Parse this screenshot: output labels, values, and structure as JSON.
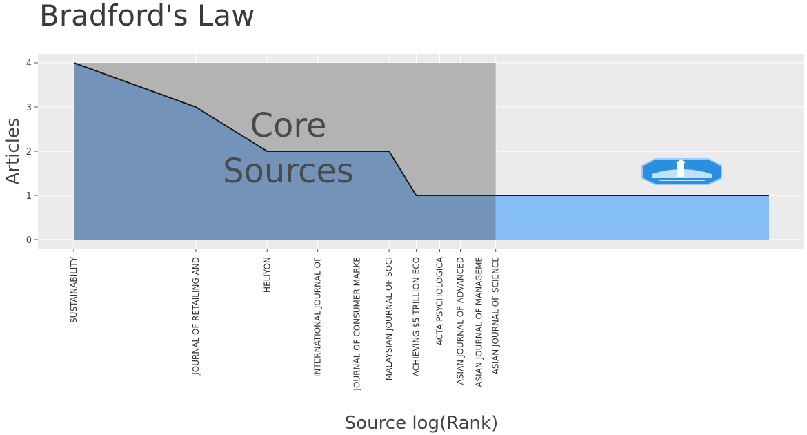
{
  "chart_data": {
    "type": "area",
    "title": "Bradford's Law",
    "xlabel": "Source log(Rank)",
    "ylabel": "Articles",
    "ylim": [
      0,
      4
    ],
    "yticks": [
      0,
      1,
      2,
      3,
      4
    ],
    "x_scale": "log",
    "grid": true,
    "sources": [
      {
        "label": "SUSTAINABILITY",
        "rank": 1,
        "articles": 4,
        "core": true
      },
      {
        "label": "JOURNAL OF RETAILING AND",
        "rank": 2,
        "articles": 3,
        "core": true
      },
      {
        "label": "HELIYON",
        "rank": 3,
        "articles": 2,
        "core": true
      },
      {
        "label": "INTERNATIONAL JOURNAL OF",
        "rank": 4,
        "articles": 2,
        "core": true
      },
      {
        "label": "JOURNAL OF CONSUMER MARKE",
        "rank": 5,
        "articles": 2,
        "core": true
      },
      {
        "label": "MALAYSIAN JOURNAL OF SOCI",
        "rank": 6,
        "articles": 2,
        "core": true
      },
      {
        "label": "ACHIEVING $5 TRILLION ECO",
        "rank": 7,
        "articles": 1,
        "core": true
      },
      {
        "label": "ACTA PSYCHOLOGICA",
        "rank": 8,
        "articles": 1,
        "core": true
      },
      {
        "label": "ASIAN JOURNAL OF ADVANCED",
        "rank": 9,
        "articles": 1,
        "core": true
      },
      {
        "label": "ASIAN JOURNAL OF MANAGEME",
        "rank": 10,
        "articles": 1,
        "core": true
      },
      {
        "label": "ASIAN JOURNAL OF SCIENCE",
        "rank": 11,
        "articles": 1,
        "core": true
      }
    ],
    "last_rank": 52,
    "last_articles": 1,
    "core_zone": {
      "label_line1": "Core",
      "label_line2": "Sources",
      "max_articles": 4
    },
    "colors": {
      "panel_bg": "#ebebeb",
      "grid": "#ffffff",
      "core_zone": "#b3b3b3",
      "core_area": "#7393b8",
      "tail_area": "#85bdf5",
      "line": "#1a1a1a"
    }
  }
}
